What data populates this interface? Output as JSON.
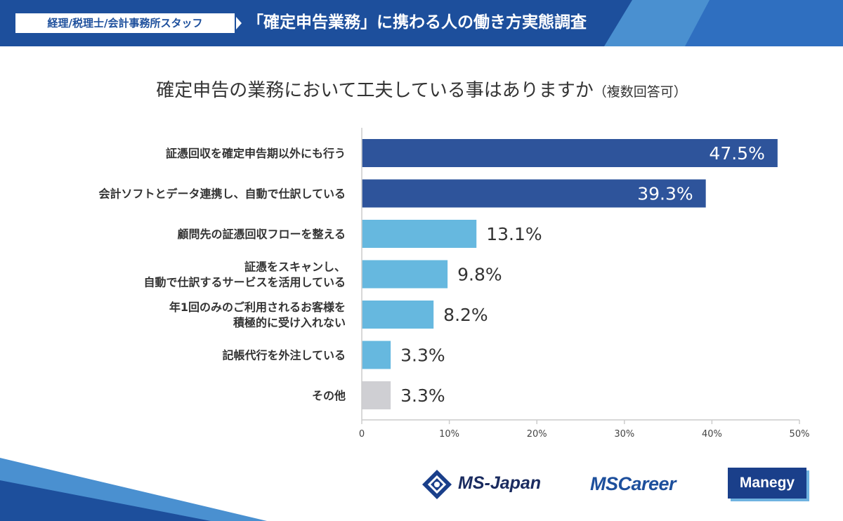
{
  "banner": {
    "tag": "経理/税理士/会計事務所スタッフ",
    "title": "「確定申告業務」に携わる人の働き方実態調査"
  },
  "colors": {
    "banner_dark": "#1d4f9c",
    "banner_light": "#4a90d0",
    "bar_dark": "#2e549b",
    "bar_light": "#66b8df",
    "bar_gray": "#cfcfd3",
    "axis": "#cccccc"
  },
  "chart_data": {
    "type": "bar",
    "orientation": "horizontal",
    "title": "確定申告の業務において工夫している事はありますか",
    "subtitle": "（複数回答可）",
    "categories": [
      [
        "証憑回収を確定申告期以外にも行う"
      ],
      [
        "会計ソフトとデータ連携し、自動で仕訳している"
      ],
      [
        "顧問先の証憑回収フローを整える"
      ],
      [
        "証憑をスキャンし、",
        "自動で仕訳するサービスを活用している"
      ],
      [
        "年1回のみのご利用されるお客様を",
        "積極的に受け入れない"
      ],
      [
        "記帳代行を外注している"
      ],
      [
        "その他"
      ]
    ],
    "values": [
      47.5,
      39.3,
      13.1,
      9.8,
      8.2,
      3.3,
      3.3
    ],
    "value_labels": [
      "47.5%",
      "39.3%",
      "13.1%",
      "9.8%",
      "8.2%",
      "3.3%",
      "3.3%"
    ],
    "bar_color_keys": [
      "bar_dark",
      "bar_dark",
      "bar_light",
      "bar_light",
      "bar_light",
      "bar_light",
      "bar_gray"
    ],
    "label_inside": [
      true,
      true,
      false,
      false,
      false,
      false,
      false
    ],
    "xlim": [
      0,
      50
    ],
    "xticks": [
      0,
      10,
      20,
      30,
      40,
      50
    ],
    "xtick_labels": [
      "0",
      "10%",
      "20%",
      "30%",
      "40%",
      "50%"
    ],
    "grid": false
  },
  "logos": {
    "ms_japan": "MS-Japan",
    "ms_career": "MSCareer",
    "manegy": "Manegy"
  }
}
